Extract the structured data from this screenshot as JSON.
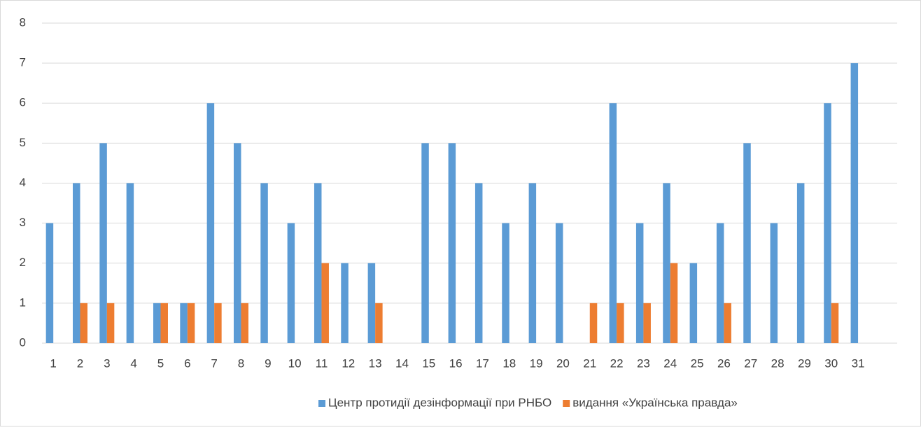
{
  "chart_data": {
    "type": "bar",
    "categories": [
      "1",
      "2",
      "3",
      "4",
      "5",
      "6",
      "7",
      "8",
      "9",
      "10",
      "11",
      "12",
      "13",
      "14",
      "15",
      "16",
      "17",
      "18",
      "19",
      "20",
      "21",
      "22",
      "23",
      "24",
      "25",
      "26",
      "27",
      "28",
      "29",
      "30",
      "31"
    ],
    "series": [
      {
        "name": "Центр протидії дезінформації при РНБО",
        "color": "#5b9bd5",
        "values": [
          3,
          4,
          5,
          4,
          1,
          1,
          6,
          5,
          4,
          3,
          4,
          2,
          2,
          0,
          5,
          5,
          4,
          3,
          4,
          3,
          0,
          6,
          3,
          4,
          2,
          3,
          5,
          3,
          4,
          6,
          7
        ]
      },
      {
        "name": "видання «Українська правда»",
        "color": "#ed7d31",
        "values": [
          0,
          1,
          1,
          0,
          1,
          1,
          1,
          1,
          0,
          0,
          2,
          0,
          1,
          0,
          0,
          0,
          0,
          0,
          0,
          0,
          1,
          1,
          1,
          2,
          0,
          1,
          0,
          0,
          0,
          1,
          0
        ]
      }
    ],
    "ylim": [
      0,
      8
    ],
    "yticks": [
      0,
      1,
      2,
      3,
      4,
      5,
      6,
      7,
      8
    ],
    "grid": true,
    "legend": "bottom"
  }
}
